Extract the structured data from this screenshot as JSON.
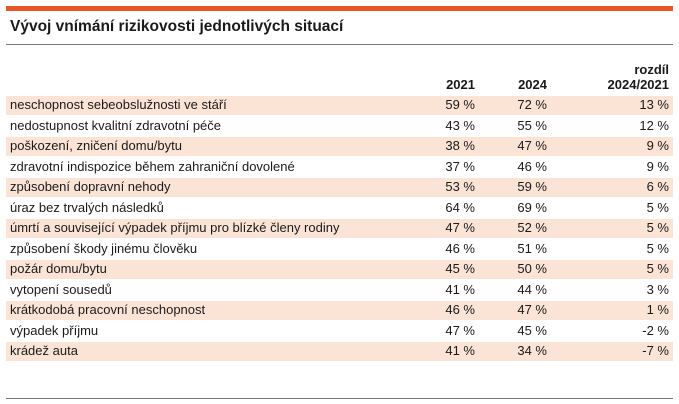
{
  "title": "Vývoj vnímání rizikovosti jednotlivých situací",
  "colors": {
    "accent": "#e8562a",
    "row_shade": "#fbe4d6",
    "rule": "#7a7a7a"
  },
  "table": {
    "headers": {
      "label": "",
      "year1": "2021",
      "year2": "2024",
      "diff_line1": "rozdíl",
      "diff_line2": "2024/2021"
    },
    "rows": [
      {
        "label": "neschopnost sebeobslužnosti ve stáří",
        "y2021": "59 %",
        "y2024": "72 %",
        "diff": "13 %"
      },
      {
        "label": "nedostupnost kvalitní zdravotní péče",
        "y2021": "43 %",
        "y2024": "55 %",
        "diff": "12 %"
      },
      {
        "label": "poškození, zničení domu/bytu",
        "y2021": "38 %",
        "y2024": "47 %",
        "diff": "9 %"
      },
      {
        "label": "zdravotní indispozice během zahraniční dovolené",
        "y2021": "37 %",
        "y2024": "46 %",
        "diff": "9 %"
      },
      {
        "label": "způsobení dopravní nehody",
        "y2021": "53 %",
        "y2024": "59 %",
        "diff": "6 %"
      },
      {
        "label": "úraz bez trvalých následků",
        "y2021": "64 %",
        "y2024": "69 %",
        "diff": "5 %"
      },
      {
        "label": "úmrtí a související výpadek příjmu pro blízké členy rodiny",
        "y2021": "47 %",
        "y2024": "52 %",
        "diff": "5 %"
      },
      {
        "label": "způsobení škody jinému člověku",
        "y2021": "46 %",
        "y2024": "51 %",
        "diff": "5 %"
      },
      {
        "label": "požár domu/bytu",
        "y2021": "45 %",
        "y2024": "50 %",
        "diff": "5 %"
      },
      {
        "label": "vytopení sousedů",
        "y2021": "41 %",
        "y2024": "44 %",
        "diff": "3 %"
      },
      {
        "label": "krátkodobá pracovní neschopnost",
        "y2021": "46 %",
        "y2024": "47 %",
        "diff": "1 %"
      },
      {
        "label": "výpadek příjmu",
        "y2021": "47 %",
        "y2024": "45 %",
        "diff": "-2 %"
      },
      {
        "label": "krádež auta",
        "y2021": "41 %",
        "y2024": "34 %",
        "diff": "-7 %"
      }
    ]
  }
}
